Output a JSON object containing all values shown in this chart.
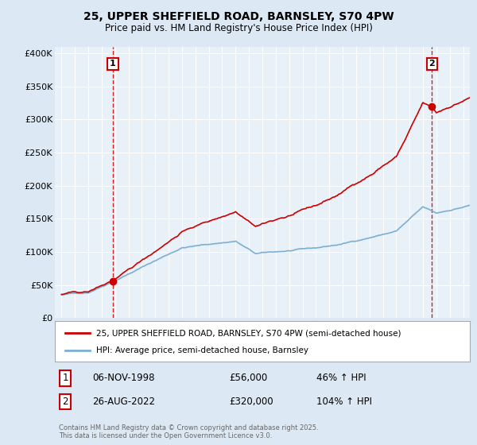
{
  "title_line1": "25, UPPER SHEFFIELD ROAD, BARNSLEY, S70 4PW",
  "title_line2": "Price paid vs. HM Land Registry's House Price Index (HPI)",
  "bg_color": "#dce9f5",
  "plot_bg_color": "#e8f0f8",
  "grid_color": "#ffffff",
  "red_color": "#cc0000",
  "blue_color": "#7bafd4",
  "sale1_date_label": "06-NOV-1998",
  "sale1_price": 56000,
  "sale1_hpi_change": "46% ↑ HPI",
  "sale2_date_label": "26-AUG-2022",
  "sale2_price": 320000,
  "sale2_hpi_change": "104% ↑ HPI",
  "sale1_x": 1998.85,
  "sale2_x": 2022.65,
  "yticks": [
    0,
    50000,
    100000,
    150000,
    200000,
    250000,
    300000,
    350000,
    400000
  ],
  "ytick_labels": [
    "£0",
    "£50K",
    "£100K",
    "£150K",
    "£200K",
    "£250K",
    "£300K",
    "£350K",
    "£400K"
  ],
  "xlim": [
    1994.5,
    2025.5
  ],
  "ylim": [
    0,
    410000
  ],
  "legend_line1": "25, UPPER SHEFFIELD ROAD, BARNSLEY, S70 4PW (semi-detached house)",
  "legend_line2": "HPI: Average price, semi-detached house, Barnsley",
  "footer": "Contains HM Land Registry data © Crown copyright and database right 2025.\nThis data is licensed under the Open Government Licence v3.0."
}
